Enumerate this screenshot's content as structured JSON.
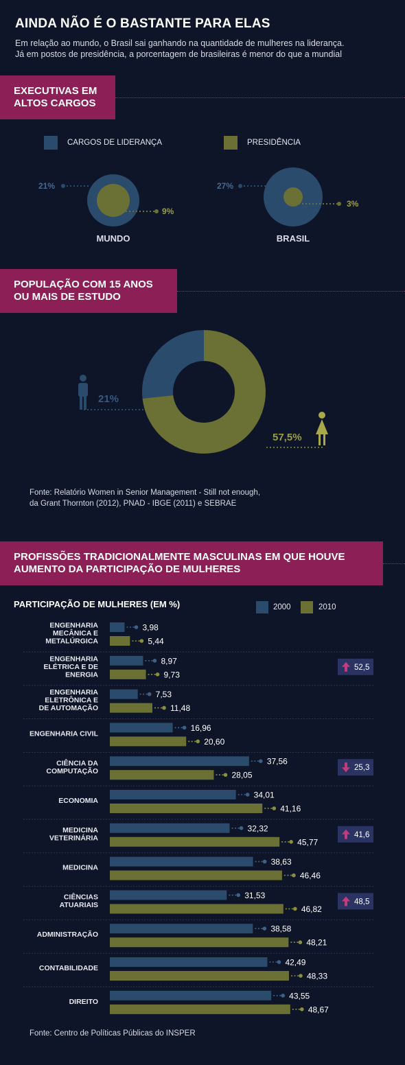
{
  "header": {
    "title": "AINDA NÃO É O BASTANTE PARA ELAS",
    "subtitle_line1": "Em relação ao mundo, o Brasil sai ganhando na quantidade de mulheres na liderança.",
    "subtitle_line2": "Já em postos de presidência, a porcentagem de brasileiras é menor do que a mundial"
  },
  "section1": {
    "banner_line1": "EXECUTIVAS EM",
    "banner_line2": "ALTOS CARGOS",
    "legend": {
      "leadership": "CARGOS DE LIDERANÇA",
      "presidency": "PRESIDÊNCIA"
    },
    "circles": [
      {
        "name": "MUNDO",
        "leadership_label": "21%",
        "presidency_label": "9%",
        "leadership": 21,
        "presidency": 9
      },
      {
        "name": "BRASIL",
        "leadership_label": "27%",
        "presidency_label": "3%",
        "leadership": 27,
        "presidency": 3
      }
    ]
  },
  "section2": {
    "banner_line1": "POPULAÇÃO COM 15 ANOS",
    "banner_line2": "OU MAIS DE ESTUDO",
    "men_label": "21%",
    "women_label": "57,5%",
    "men_icon": "man-icon",
    "women_icon": "woman-icon",
    "source_line1": "Fonte: Relatório Women in Senior Management - Still not enough,",
    "source_line2": "da Grant Thornton (2012), PNAD - IBGE (2011) e SEBRAE"
  },
  "section3": {
    "banner_line1": "PROFISSÕES TRADICIONALMENTE MASCULINAS EM QUE HOUVE",
    "banner_line2": "AUMENTO DA PARTICIPAÇÃO DE MULHERES",
    "source": "Fonte: Centro de Políticas Públicas do INSPER"
  },
  "colors": {
    "blue": "#2b4b6c",
    "green": "#6b7035",
    "magenta": "#8c1f55",
    "bg": "#0f1528"
  },
  "chart_data": [
    {
      "type": "pie",
      "title": "",
      "categories": [
        "",
        ""
      ],
      "values": [
        21,
        57.5
      ],
      "labels": [
        "21%",
        "57,5%"
      ]
    },
    {
      "type": "bar",
      "title": "PARTICIPAÇÃO DE MULHERES (EM %)",
      "legend": [
        "2000",
        "2010"
      ],
      "legend_position": "top-right",
      "categories": [
        [
          "ENGENHARIA",
          "MECÂNICA E",
          "METALÚRGICA"
        ],
        [
          "ENGENHARIA",
          "ELÉTRICA E DE",
          "ENERGIA"
        ],
        [
          "ENGENHARIA",
          "ELETRÔNICA E",
          "DE AUTOMAÇÃO"
        ],
        [
          "ENGENHARIA CIVIL"
        ],
        [
          "CIÊNCIA DA",
          "COMPUTAÇÃO"
        ],
        [
          "ECONOMIA"
        ],
        [
          "MEDICINA",
          "VETERINÁRIA"
        ],
        [
          "MEDICINA"
        ],
        [
          "CIÊNCIAS",
          "ATUARIAIS"
        ],
        [
          "ADMINISTRAÇÃO"
        ],
        [
          "CONTABILIDADE"
        ],
        [
          "DIREITO"
        ]
      ],
      "series": [
        {
          "name": "2000",
          "values": [
            3.98,
            8.97,
            7.53,
            16.96,
            37.56,
            34.01,
            32.32,
            38.63,
            31.53,
            38.58,
            42.49,
            43.55
          ],
          "labels": [
            "3,98",
            "8,97",
            "7,53",
            "16,96",
            "37,56",
            "34,01",
            "32,32",
            "38,63",
            "31,53",
            "38,58",
            "42,49",
            "43,55"
          ]
        },
        {
          "name": "2010",
          "values": [
            5.44,
            9.73,
            11.48,
            20.6,
            28.05,
            41.16,
            45.77,
            46.46,
            46.82,
            48.21,
            48.33,
            48.67
          ],
          "labels": [
            "5,44",
            "9,73",
            "11,48",
            "20,60",
            "28,05",
            "41,16",
            "45,77",
            "46,46",
            "46,82",
            "48,21",
            "48,33",
            "48,67"
          ]
        }
      ],
      "changes": [
        {
          "row": 1,
          "direction": "up",
          "label": "52,5"
        },
        {
          "row": 4,
          "direction": "down",
          "label": "25,3"
        },
        {
          "row": 6,
          "direction": "up",
          "label": "41,6"
        },
        {
          "row": 8,
          "direction": "up",
          "label": "48,5"
        }
      ]
    }
  ]
}
